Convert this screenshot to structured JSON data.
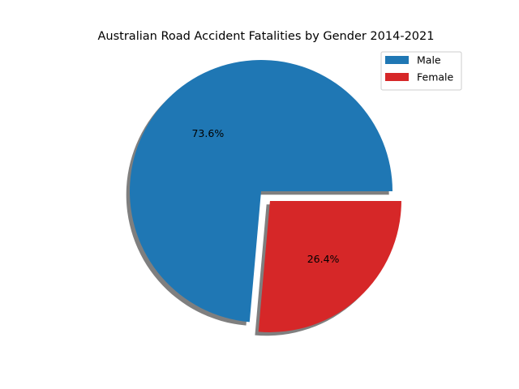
{
  "chart_data": {
    "type": "pie",
    "title": "Australian Road Accident Fatalities by Gender 2014-2021",
    "slices": [
      {
        "label": "Male",
        "pct_label": "73.6%",
        "value": 73.6,
        "color": "#1f77b4",
        "exploded": false
      },
      {
        "label": "Female",
        "pct_label": "26.4%",
        "value": 26.4,
        "color": "#d62728",
        "exploded": true
      }
    ],
    "shadow": true,
    "legend": {
      "position": "top-right",
      "entries": [
        "Male",
        "Female"
      ]
    }
  }
}
